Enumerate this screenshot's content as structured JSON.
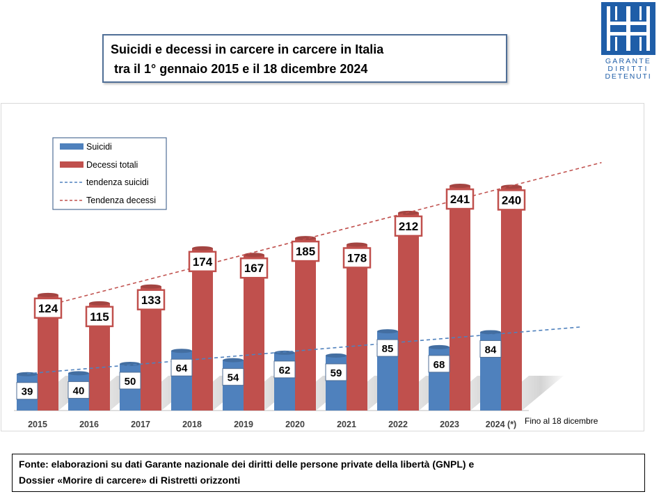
{
  "title": {
    "line1": "Suicidi e decessi in carcere in carcere in Italia",
    "line2": " tra il 1° gennaio 2015 e il 18 dicembre 2024"
  },
  "logo": {
    "text_lines": [
      "GARANTE",
      "DIRITTI",
      "DETENUTI"
    ],
    "color": "#1f5ea8"
  },
  "chart_data": {
    "type": "bar",
    "categories": [
      "2015",
      "2016",
      "2017",
      "2018",
      "2019",
      "2020",
      "2021",
      "2022",
      "2023",
      "2024 (*)"
    ],
    "series": [
      {
        "name": "Suicidi",
        "values": [
          39,
          40,
          50,
          64,
          54,
          62,
          59,
          85,
          68,
          84
        ],
        "color": "#4f81bd"
      },
      {
        "name": "Decessi totali",
        "values": [
          124,
          115,
          133,
          174,
          167,
          185,
          178,
          212,
          241,
          240
        ],
        "color": "#c0504d"
      }
    ],
    "trendlines": [
      {
        "name": "tendenza suicidi",
        "of": "Suicidi",
        "style": "dashed",
        "color": "#4f81bd"
      },
      {
        "name": "Tendenza decessi",
        "of": "Decessi totali",
        "style": "dashed",
        "color": "#c0504d"
      }
    ],
    "annotation": "Fino al 18 dicembre",
    "ylim": [
      0,
      300
    ],
    "grid": false,
    "legend_position": "top-left"
  },
  "source": {
    "line1": "Fonte: elaborazioni su dati Garante nazionale dei diritti delle persone private della libertà (GNPL) e",
    "line2": "Dossier «Morire di carcere» di Ristretti orizzonti"
  }
}
